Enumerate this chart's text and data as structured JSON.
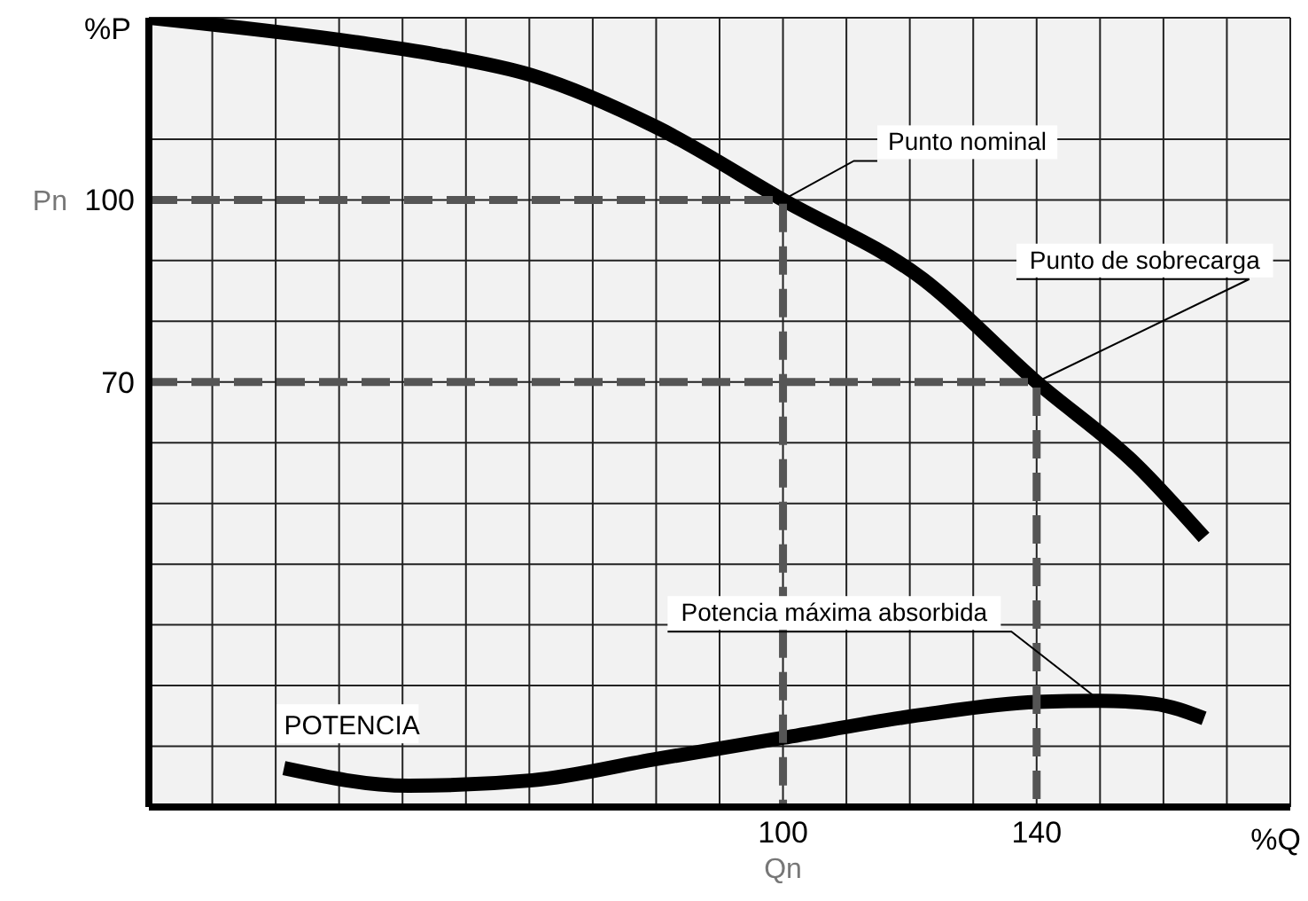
{
  "chart_data": {
    "type": "line",
    "xlabel": "%Q",
    "ylabel": "%P",
    "xlim": [
      0,
      180
    ],
    "ylim": [
      0,
      130
    ],
    "xticks": [
      {
        "value": 0,
        "label": null
      },
      {
        "value": 10,
        "label": null
      },
      {
        "value": 20,
        "label": null
      },
      {
        "value": 30,
        "label": null
      },
      {
        "value": 40,
        "label": null
      },
      {
        "value": 50,
        "label": null
      },
      {
        "value": 60,
        "label": null
      },
      {
        "value": 70,
        "label": null
      },
      {
        "value": 80,
        "label": null
      },
      {
        "value": 90,
        "label": null
      },
      100,
      {
        "value": 110,
        "label": null
      },
      {
        "value": 120,
        "label": null
      },
      {
        "value": 130,
        "label": null
      },
      140,
      {
        "value": 150,
        "label": null
      },
      {
        "value": 160,
        "label": null
      },
      {
        "value": 170,
        "label": null
      },
      {
        "value": 180,
        "label": null
      }
    ],
    "yticks": [
      {
        "value": 0,
        "label": null
      },
      {
        "value": 10,
        "label": null
      },
      {
        "value": 20,
        "label": null
      },
      {
        "value": 30,
        "label": null
      },
      {
        "value": 40,
        "label": null
      },
      {
        "value": 50,
        "label": null
      },
      {
        "value": 60,
        "label": null
      },
      70,
      {
        "value": 80,
        "label": null
      },
      {
        "value": 90,
        "label": null
      },
      100,
      {
        "value": 110,
        "label": null
      }
    ],
    "grid": true,
    "legend": false,
    "marker": "none",
    "series": [
      {
        "color": "#000000",
        "x": [
          0,
          32.5,
          45,
          60.5,
          80,
          100,
          122,
          140,
          155.7,
          166.4
        ],
        "values": [
          130,
          126,
          124,
          120.5,
          112,
          100,
          87,
          70,
          56.4,
          44.4
        ]
      },
      {
        "name": "POTENCIA",
        "color": "#000000",
        "x": [
          21.3,
          41,
          60.5,
          80,
          100,
          122,
          140,
          150,
          158.5,
          166.4
        ],
        "values": [
          6.4,
          3.5,
          4.4,
          7.9,
          11.4,
          15.2,
          17.3,
          17.5,
          17,
          14.6
        ]
      },
      {
        "color": "#555555",
        "line_style": "dashed",
        "x": [
          0,
          100,
          100
        ],
        "values": [
          100,
          100,
          0
        ]
      },
      {
        "color": "#555555",
        "line_style": "dashed",
        "x": [
          0,
          140,
          140
        ],
        "values": [
          70,
          70,
          0
        ]
      }
    ],
    "annotations": [
      {
        "text": "Pn",
        "x": 0,
        "y": 100
      },
      {
        "text": "Qn",
        "x": 100,
        "y": 0
      },
      {
        "text": "Punto nominal",
        "x": 100,
        "y": 100
      },
      {
        "text": "Punto de sobrecarga",
        "x": 140,
        "y": 70
      },
      {
        "text": "Potencia máxima absorbida",
        "x": 150,
        "y": 17.5
      }
    ]
  }
}
